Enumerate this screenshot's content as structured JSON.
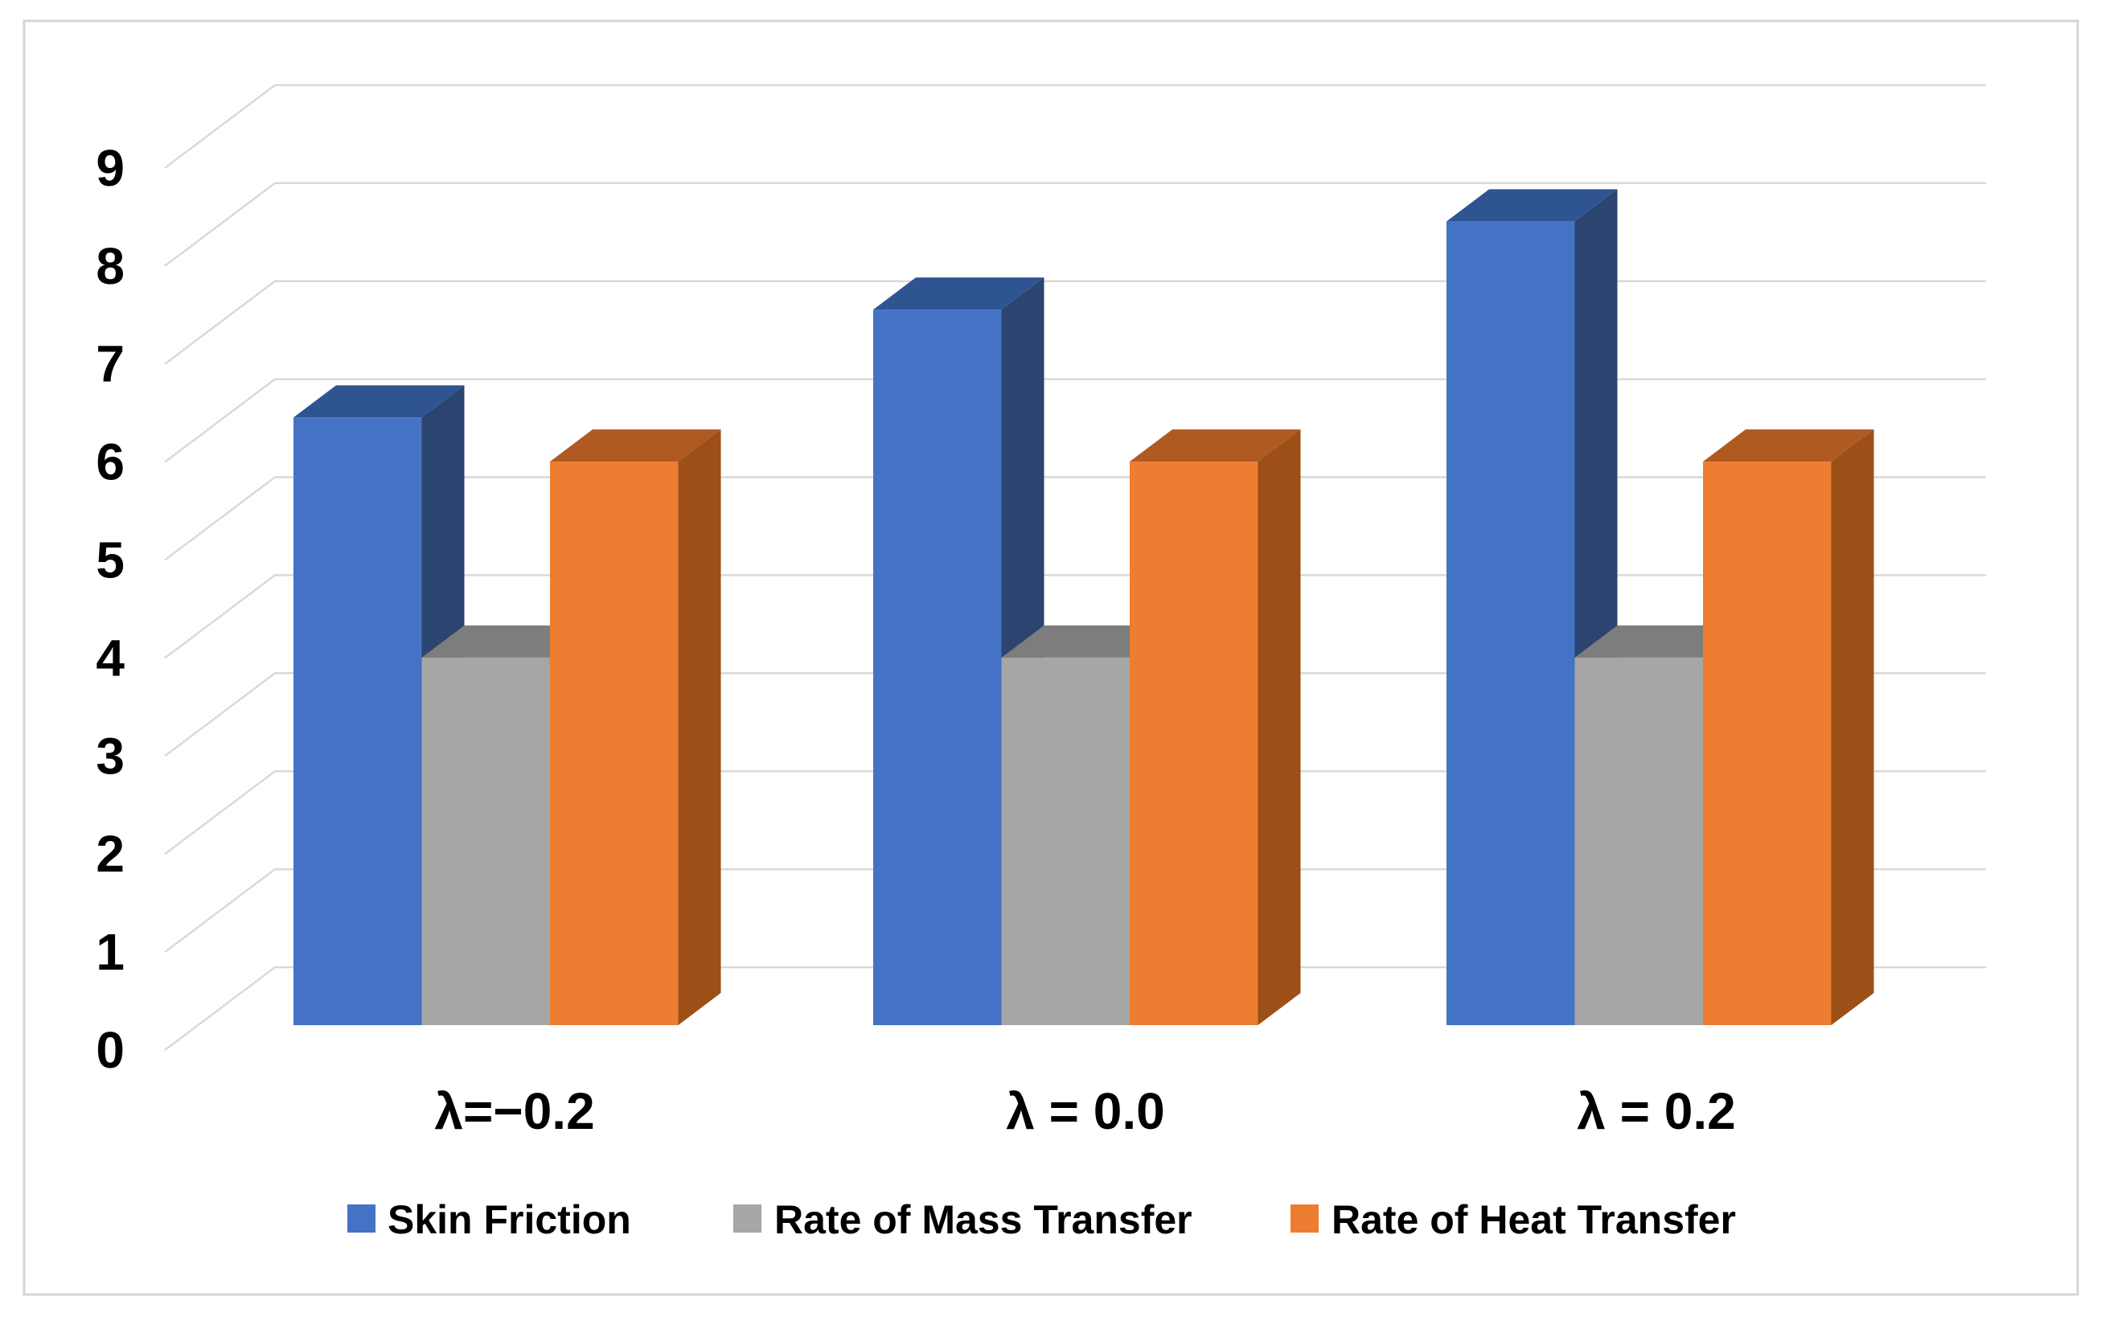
{
  "chart_data": {
    "type": "bar",
    "variant": "3d-clustered-column",
    "title": "",
    "xlabel": "",
    "ylabel": "",
    "categories": [
      "λ=−0.2",
      "λ = 0.0",
      "λ = 0.2"
    ],
    "series": [
      {
        "name": "Skin Friction",
        "values": [
          6.2,
          7.3,
          8.2
        ],
        "color": "#4472C4",
        "color_top": "#2F5492",
        "color_side": "#2B4470"
      },
      {
        "name": "Rate of Mass Transfer",
        "values": [
          3.75,
          3.75,
          3.75
        ],
        "color": "#A6A6A6",
        "color_top": "#7D7D7D",
        "color_side": "#8F8F8F"
      },
      {
        "name": "Rate of Heat Transfer",
        "values": [
          5.75,
          5.75,
          5.75
        ],
        "color": "#ED7D31",
        "color_top": "#AE5A21",
        "color_side": "#9C4F17"
      }
    ],
    "y_axis": {
      "ticks": [
        0,
        1,
        2,
        3,
        4,
        5,
        6,
        7,
        8,
        9
      ],
      "min": 0,
      "max": 9
    },
    "grid": true,
    "legend_position": "bottom",
    "colors": {
      "gridline": "#D9D9D9",
      "border": "#D5D5D5",
      "text": "#000000",
      "background": "#FFFFFF"
    }
  }
}
